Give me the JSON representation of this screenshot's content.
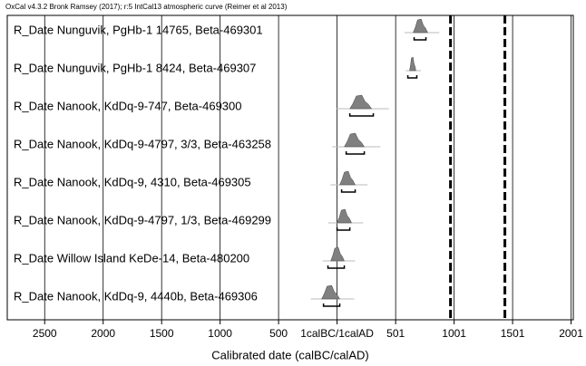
{
  "chart_data": {
    "type": "oxcal-multiplot",
    "header": "OxCal v4.3.2 Bronk Ramsey (2017); r:5 IntCal13 atmospheric curve (Reimer et al 2013)",
    "x_label": "Calibrated date (calBC/calAD)",
    "xlim": [
      -2820,
      2020
    ],
    "xticks": [
      {
        "value": -2500,
        "label": "2500"
      },
      {
        "value": -2000,
        "label": "2000"
      },
      {
        "value": -1500,
        "label": "1500"
      },
      {
        "value": -1000,
        "label": "1000"
      },
      {
        "value": -500,
        "label": "500"
      },
      {
        "value": 0,
        "label": "1calBC/1calAD"
      },
      501,
      1001,
      1501,
      2001
    ],
    "grid": true,
    "reference_lines": [
      970,
      1435
    ],
    "samples": [
      {
        "name": "R_Date Nunguvik, PgHb-1 14765, Beta-469301",
        "density": [
          651,
          775
        ],
        "range95": [
          659,
          760
        ]
      },
      {
        "name": "R_Date Nunguvik, PgHb-1 8424, Beta-469307",
        "density": [
          620,
          674
        ],
        "range95": [
          605,
          682
        ]
      },
      {
        "name": "R_Date Nanook, KdDq-9-747, Beta-469300",
        "density": [
          109,
          295
        ],
        "range95": [
          109,
          310
        ]
      },
      {
        "name": "R_Date Nanook, KdDq-9-4797, 3/3, Beta-463258",
        "density": [
          62,
          233
        ],
        "range95": [
          78,
          233
        ]
      },
      {
        "name": "R_Date Nanook, KdDq-9, 4310, Beta-469305",
        "density": [
          23,
          155
        ],
        "range95": [
          39,
          155
        ]
      },
      {
        "name": "R_Date Nanook, KdDq-9-4797, 1/3, Beta-469299",
        "density": [
          0,
          124
        ],
        "range95": [
          0,
          109
        ]
      },
      {
        "name": "R_Date Willow Island KeDe-14, Beta-480200",
        "density": [
          -54,
          62
        ],
        "range95": [
          -78,
          62
        ]
      },
      {
        "name": "R_Date Nanook, KdDq-9, 4440b, Beta-469306",
        "density": [
          -132,
          23
        ],
        "range95": [
          -116,
          23
        ]
      }
    ]
  }
}
